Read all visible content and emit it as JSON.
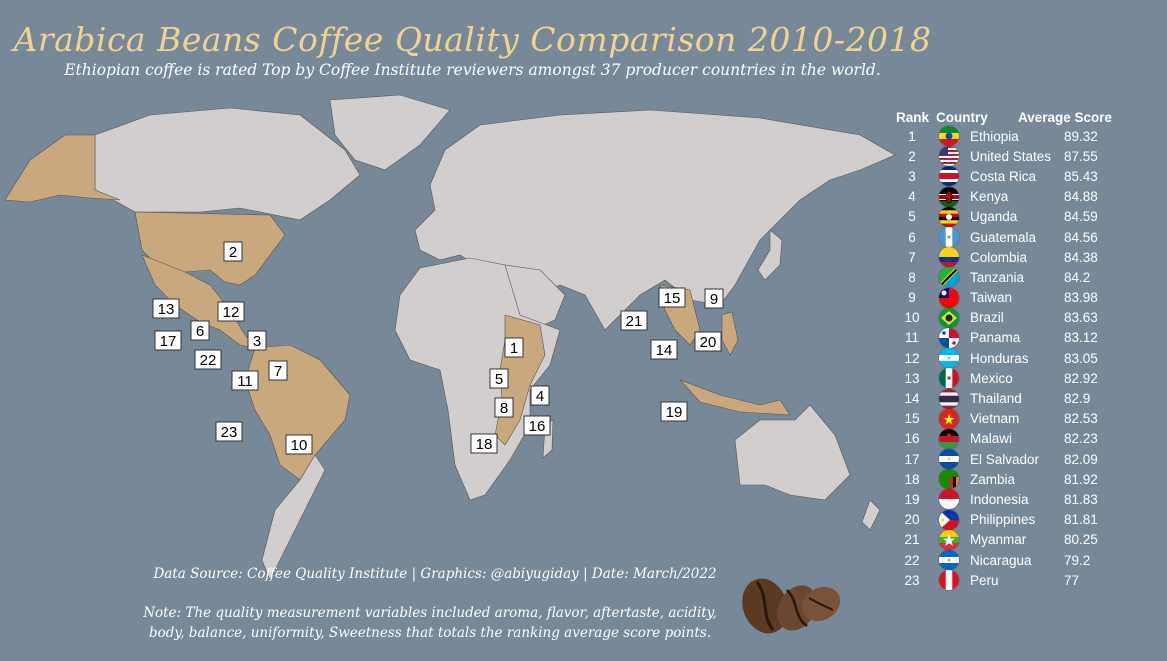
{
  "title": "Arabica Beans Coffee Quality Comparison 2010-2018",
  "subtitle": "Ethiopian coffee is rated Top by Coffee Institute reviewers amongst 37 producer countries in the world.",
  "colors": {
    "background": "#778899",
    "land": "#d3cece",
    "producer": "#c8a87c",
    "title": "#f1d28f"
  },
  "table": {
    "headers": {
      "rank": "Rank",
      "country": "Country",
      "score": "Average Score"
    },
    "rows": [
      {
        "rank": "1",
        "country": "Ethiopia",
        "score": "89.32",
        "flag": "ethiopia-flag"
      },
      {
        "rank": "2",
        "country": "United States",
        "score": "87.55",
        "flag": "usa-flag"
      },
      {
        "rank": "3",
        "country": "Costa Rica",
        "score": "85.43",
        "flag": "costa-rica-flag"
      },
      {
        "rank": "4",
        "country": "Kenya",
        "score": "84.88",
        "flag": "kenya-flag"
      },
      {
        "rank": "5",
        "country": "Uganda",
        "score": "84.59",
        "flag": "uganda-flag"
      },
      {
        "rank": "6",
        "country": "Guatemala",
        "score": "84.56",
        "flag": "guatemala-flag"
      },
      {
        "rank": "7",
        "country": "Colombia",
        "score": "84.38",
        "flag": "colombia-flag"
      },
      {
        "rank": "8",
        "country": "Tanzania",
        "score": "84.2",
        "flag": "tanzania-flag"
      },
      {
        "rank": "9",
        "country": "Taiwan",
        "score": "83.98",
        "flag": "taiwan-flag"
      },
      {
        "rank": "10",
        "country": "Brazil",
        "score": "83.63",
        "flag": "brazil-flag"
      },
      {
        "rank": "11",
        "country": "Panama",
        "score": "83.12",
        "flag": "panama-flag"
      },
      {
        "rank": "12",
        "country": "Honduras",
        "score": "83.05",
        "flag": "honduras-flag"
      },
      {
        "rank": "13",
        "country": "Mexico",
        "score": "82.92",
        "flag": "mexico-flag"
      },
      {
        "rank": "14",
        "country": "Thailand",
        "score": "82.9",
        "flag": "thailand-flag"
      },
      {
        "rank": "15",
        "country": "Vietnam",
        "score": "82.53",
        "flag": "vietnam-flag"
      },
      {
        "rank": "16",
        "country": "Malawi",
        "score": "82.23",
        "flag": "malawi-flag"
      },
      {
        "rank": "17",
        "country": "El Salvador",
        "score": "82.09",
        "flag": "el-salvador-flag"
      },
      {
        "rank": "18",
        "country": "Zambia",
        "score": "81.92",
        "flag": "zambia-flag"
      },
      {
        "rank": "19",
        "country": "Indonesia",
        "score": "81.83",
        "flag": "indonesia-flag"
      },
      {
        "rank": "20",
        "country": "Philippines",
        "score": "81.81",
        "flag": "philippines-flag"
      },
      {
        "rank": "21",
        "country": "Myanmar",
        "score": "80.25",
        "flag": "myanmar-flag"
      },
      {
        "rank": "22",
        "country": "Nicaragua",
        "score": "79.2",
        "flag": "nicaragua-flag"
      },
      {
        "rank": "23",
        "country": "Peru",
        "score": "77",
        "flag": "peru-flag"
      }
    ]
  },
  "map_labels": [
    "2",
    "13",
    "12",
    "6",
    "3",
    "17",
    "22",
    "11",
    "7",
    "23",
    "10",
    "1",
    "5",
    "4",
    "8",
    "16",
    "18",
    "15",
    "9",
    "21",
    "20",
    "14",
    "19"
  ],
  "source": "Data Source: Coffee Quality Institute | Graphics: @abiyugiday | Date: March/2022",
  "note_line1": "Note: The quality measurement variables included aroma, flavor, aftertaste, acidity,",
  "note_line2": "body, balance, uniformity, Sweetness that totals the ranking average score points."
}
